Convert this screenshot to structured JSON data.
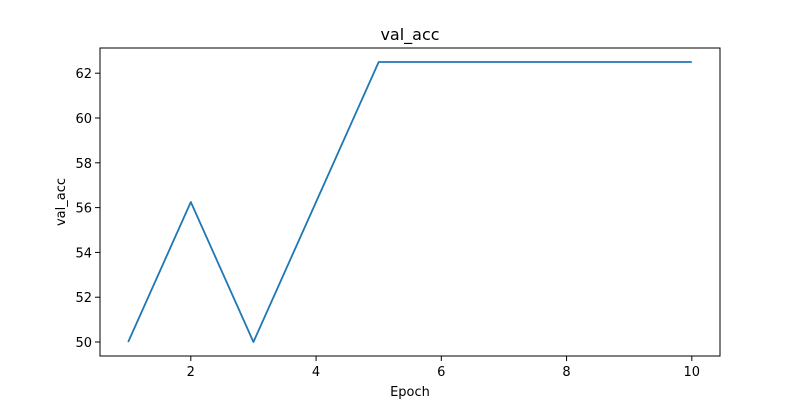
{
  "chart_data": {
    "type": "line",
    "title": "val_acc",
    "xlabel": "Epoch",
    "ylabel": "val_acc",
    "grid": false,
    "xlim": [
      0.55,
      10.45
    ],
    "ylim": [
      49.375,
      63.125
    ],
    "xticks": [
      2,
      4,
      6,
      8,
      10
    ],
    "yticks": [
      50,
      52,
      54,
      56,
      58,
      60,
      62
    ],
    "xtick_labels": [
      "2",
      "4",
      "6",
      "8",
      "10"
    ],
    "ytick_labels": [
      "50",
      "52",
      "54",
      "56",
      "58",
      "60",
      "62"
    ],
    "series": [
      {
        "color": "#1f77b4",
        "x": [
          1,
          2,
          3,
          4,
          5,
          6,
          7,
          8,
          9,
          10
        ],
        "y": [
          50.0,
          56.25,
          50.0,
          56.25,
          62.5,
          62.5,
          62.5,
          62.5,
          62.5,
          62.5
        ]
      }
    ]
  }
}
